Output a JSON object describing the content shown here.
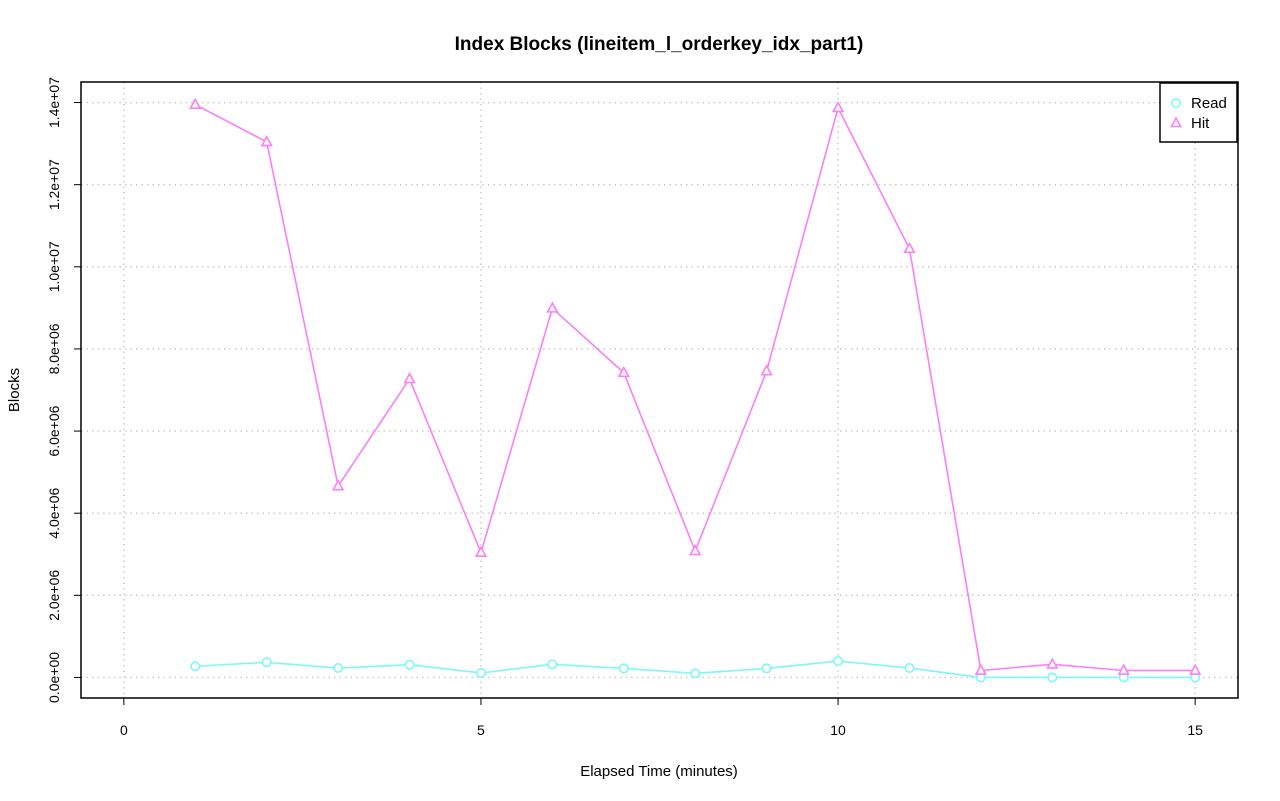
{
  "chart_data": {
    "type": "line",
    "title": "Index Blocks (lineitem_l_orderkey_idx_part1)",
    "xlabel": "Elapsed Time (minutes)",
    "ylabel": "Blocks",
    "xlim": [
      -0.6,
      15.6
    ],
    "ylim": [
      -500000,
      14500000
    ],
    "x_ticks": [
      0,
      5,
      10,
      15
    ],
    "x_tick_labels": [
      "0",
      "5",
      "10",
      "15"
    ],
    "y_ticks": [
      0,
      2000000,
      4000000,
      6000000,
      8000000,
      10000000,
      12000000,
      14000000
    ],
    "y_tick_labels": [
      "0.0e+00",
      "2.0e+06",
      "4.0e+06",
      "6.0e+06",
      "8.0e+06",
      "1.0e+07",
      "1.2e+07",
      "1.4e+07"
    ],
    "grid": true,
    "legend_position": "top-right",
    "series": [
      {
        "name": "Read",
        "color": "#7ff7f7",
        "marker": "circle",
        "x": [
          1,
          2,
          3,
          4,
          5,
          6,
          7,
          8,
          9,
          10,
          11,
          12,
          13,
          14,
          15
        ],
        "values": [
          270000,
          370000,
          230000,
          310000,
          110000,
          320000,
          220000,
          100000,
          220000,
          400000,
          230000,
          0,
          0,
          0,
          0
        ]
      },
      {
        "name": "Hit",
        "color": "#fb7ff8",
        "marker": "triangle",
        "x": [
          1,
          2,
          3,
          4,
          5,
          6,
          7,
          8,
          9,
          10,
          11,
          12,
          13,
          14,
          15
        ],
        "values": [
          13950000,
          13040000,
          4660000,
          7270000,
          3040000,
          8990000,
          7420000,
          3080000,
          7460000,
          13870000,
          10440000,
          170000,
          320000,
          170000,
          170000
        ]
      }
    ]
  }
}
